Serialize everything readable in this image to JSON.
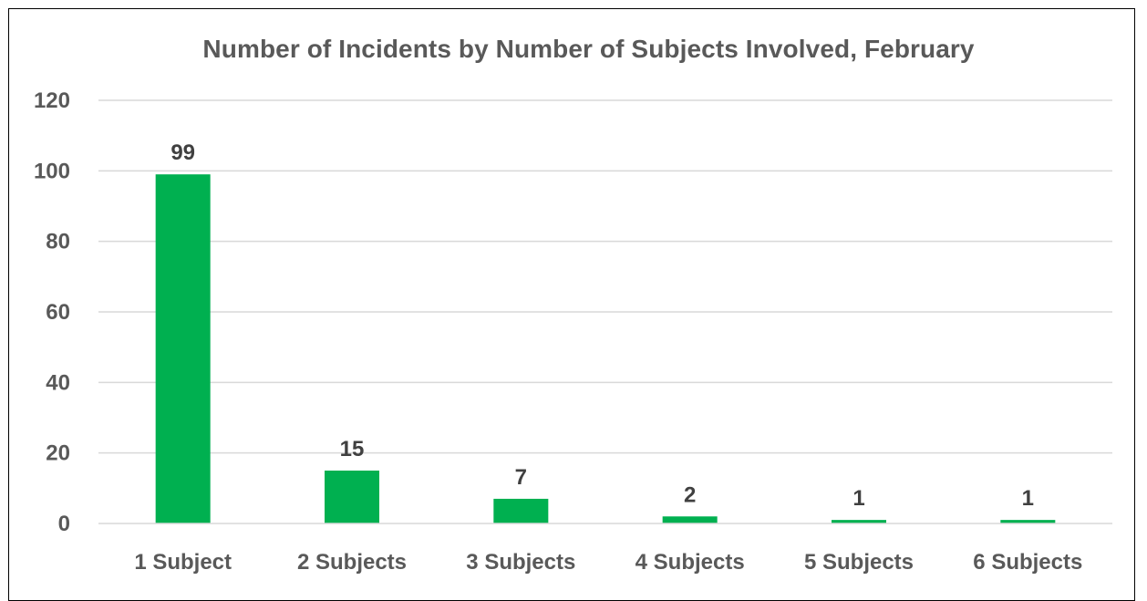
{
  "chart_data": {
    "type": "bar",
    "title": "Number of Incidents by Number of Subjects Involved, February",
    "xlabel": "",
    "ylabel": "",
    "categories": [
      "1 Subject",
      "2 Subjects",
      "3 Subjects",
      "4 Subjects",
      "5 Subjects",
      "6 Subjects"
    ],
    "values": [
      99,
      15,
      7,
      2,
      1,
      1
    ],
    "data_labels": [
      "99",
      "15",
      "7",
      "2",
      "1",
      "1"
    ],
    "ylim": [
      0,
      120
    ],
    "y_ticks": [
      "0",
      "20",
      "40",
      "60",
      "80",
      "100",
      "120"
    ],
    "grid": true,
    "legend": "none",
    "colors": {
      "bar": "#00B050",
      "gridline": "#D9D9D9",
      "text": "#595959",
      "data_label": "#404040"
    }
  }
}
